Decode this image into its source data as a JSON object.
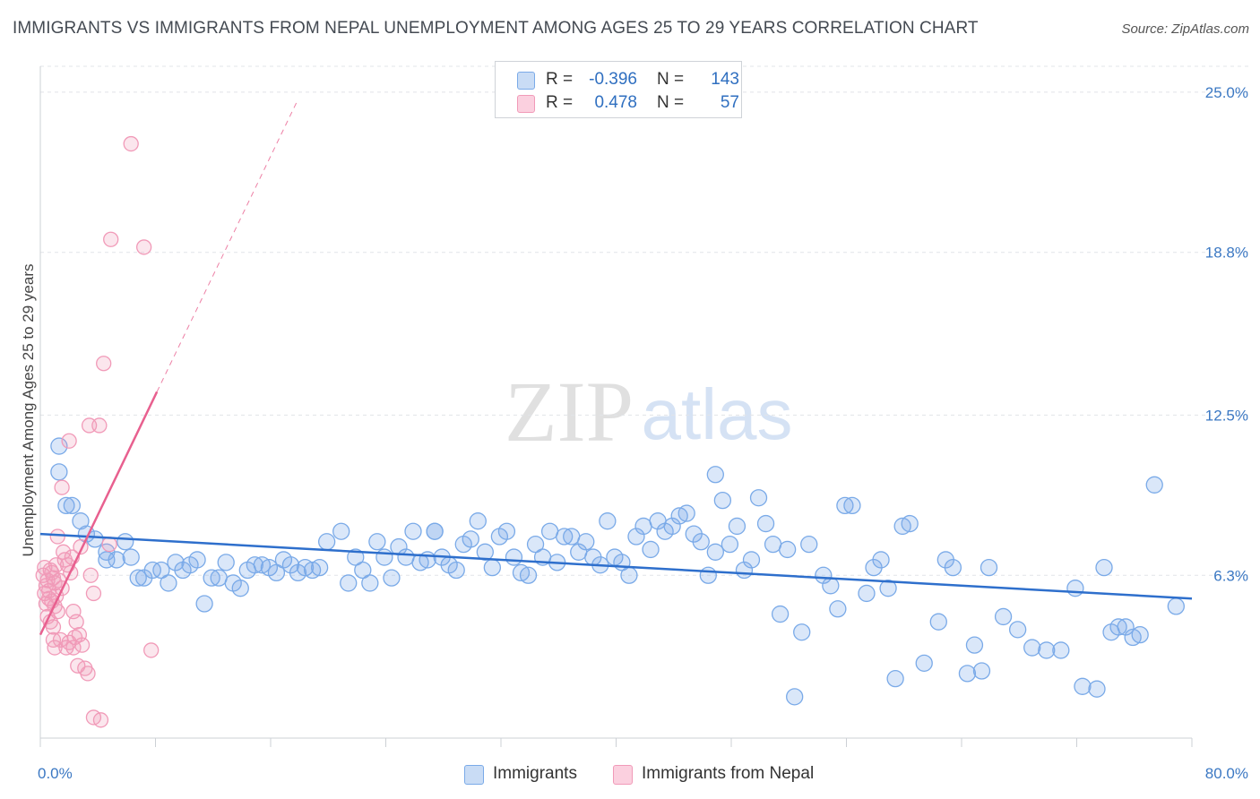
{
  "title": "IMMIGRANTS VS IMMIGRANTS FROM NEPAL UNEMPLOYMENT AMONG AGES 25 TO 29 YEARS CORRELATION CHART",
  "source": "Source: ZipAtlas.com",
  "watermark": {
    "zip": "ZIP",
    "atlas": "atlas"
  },
  "legend": {
    "r_label": "R =",
    "n_label": "N =",
    "rows": [
      {
        "name": "Immigrants",
        "r": "-0.396",
        "n": "143",
        "color": "#7aaae8"
      },
      {
        "name": "Immigrants from Nepal",
        "r": "0.478",
        "n": "57",
        "color": "#f19ab8"
      }
    ]
  },
  "chart_data": {
    "type": "scatter",
    "title": "IMMIGRANTS VS IMMIGRANTS FROM NEPAL UNEMPLOYMENT AMONG AGES 25 TO 29 YEARS CORRELATION CHART",
    "xlabel": "",
    "ylabel": "Unemployment Among Ages 25 to 29 years",
    "xlim": [
      0,
      80
    ],
    "ylim": [
      0,
      26
    ],
    "x_tick_labels": [
      "0.0%",
      "80.0%"
    ],
    "y_ticks": [
      6.3,
      12.5,
      18.8,
      25.0
    ],
    "y_tick_labels": [
      "6.3%",
      "12.5%",
      "18.8%",
      "25.0%"
    ],
    "grid": true,
    "legend_position": "top-center",
    "series": [
      {
        "name": "Immigrants",
        "color": "#7aaae8",
        "line_color": "#2e6fcc",
        "r": -0.396,
        "n": 143,
        "trend": {
          "x": [
            0,
            80
          ],
          "y": [
            7.9,
            5.4
          ]
        },
        "points": [
          [
            1.3,
            11.3
          ],
          [
            1.3,
            10.3
          ],
          [
            1.8,
            9.0
          ],
          [
            2.2,
            9.0
          ],
          [
            2.8,
            8.4
          ],
          [
            3.2,
            7.9
          ],
          [
            3.8,
            7.7
          ],
          [
            4.6,
            7.2
          ],
          [
            4.6,
            6.9
          ],
          [
            5.3,
            6.9
          ],
          [
            5.9,
            7.6
          ],
          [
            6.3,
            7.0
          ],
          [
            6.8,
            6.2
          ],
          [
            7.2,
            6.2
          ],
          [
            7.8,
            6.5
          ],
          [
            8.4,
            6.5
          ],
          [
            8.9,
            6.0
          ],
          [
            9.4,
            6.8
          ],
          [
            9.9,
            6.5
          ],
          [
            10.4,
            6.7
          ],
          [
            10.9,
            6.9
          ],
          [
            11.4,
            5.2
          ],
          [
            11.9,
            6.2
          ],
          [
            12.4,
            6.2
          ],
          [
            12.9,
            6.8
          ],
          [
            13.4,
            6.0
          ],
          [
            13.9,
            5.8
          ],
          [
            14.4,
            6.5
          ],
          [
            14.9,
            6.7
          ],
          [
            15.4,
            6.7
          ],
          [
            15.9,
            6.6
          ],
          [
            16.4,
            6.4
          ],
          [
            16.9,
            6.9
          ],
          [
            17.4,
            6.7
          ],
          [
            17.9,
            6.4
          ],
          [
            18.4,
            6.6
          ],
          [
            18.9,
            6.5
          ],
          [
            19.4,
            6.6
          ],
          [
            19.9,
            7.6
          ],
          [
            20.9,
            8.0
          ],
          [
            21.4,
            6.0
          ],
          [
            21.9,
            7.0
          ],
          [
            22.4,
            6.5
          ],
          [
            22.9,
            6.0
          ],
          [
            23.4,
            7.6
          ],
          [
            23.9,
            7.0
          ],
          [
            24.4,
            6.2
          ],
          [
            24.9,
            7.4
          ],
          [
            25.4,
            7.0
          ],
          [
            25.9,
            8.0
          ],
          [
            26.4,
            6.8
          ],
          [
            26.9,
            6.9
          ],
          [
            27.4,
            8.0
          ],
          [
            27.9,
            7.0
          ],
          [
            28.4,
            6.7
          ],
          [
            28.9,
            6.5
          ],
          [
            29.4,
            7.5
          ],
          [
            29.9,
            7.7
          ],
          [
            30.4,
            8.4
          ],
          [
            30.9,
            7.2
          ],
          [
            31.4,
            6.6
          ],
          [
            31.9,
            7.8
          ],
          [
            32.4,
            8.0
          ],
          [
            32.9,
            7.0
          ],
          [
            33.4,
            6.4
          ],
          [
            33.9,
            6.3
          ],
          [
            34.4,
            7.5
          ],
          [
            34.9,
            7.0
          ],
          [
            35.4,
            8.0
          ],
          [
            35.9,
            6.8
          ],
          [
            36.4,
            7.8
          ],
          [
            36.9,
            7.8
          ],
          [
            37.4,
            7.2
          ],
          [
            37.9,
            7.6
          ],
          [
            38.4,
            7.0
          ],
          [
            38.9,
            6.7
          ],
          [
            39.4,
            8.4
          ],
          [
            39.9,
            7.0
          ],
          [
            40.4,
            6.8
          ],
          [
            40.9,
            6.3
          ],
          [
            41.4,
            7.8
          ],
          [
            41.9,
            8.2
          ],
          [
            42.4,
            7.3
          ],
          [
            42.9,
            8.4
          ],
          [
            43.4,
            8.0
          ],
          [
            43.9,
            8.2
          ],
          [
            44.4,
            8.6
          ],
          [
            44.9,
            8.7
          ],
          [
            45.4,
            7.9
          ],
          [
            45.9,
            7.6
          ],
          [
            46.4,
            6.3
          ],
          [
            46.9,
            7.2
          ],
          [
            47.4,
            9.2
          ],
          [
            47.9,
            7.5
          ],
          [
            48.4,
            8.2
          ],
          [
            48.9,
            6.5
          ],
          [
            49.4,
            6.9
          ],
          [
            49.9,
            9.3
          ],
          [
            50.4,
            8.3
          ],
          [
            50.9,
            7.5
          ],
          [
            51.4,
            4.8
          ],
          [
            51.9,
            7.3
          ],
          [
            52.4,
            1.6
          ],
          [
            52.9,
            4.1
          ],
          [
            53.4,
            7.5
          ],
          [
            54.4,
            6.3
          ],
          [
            54.9,
            5.9
          ],
          [
            55.4,
            5.0
          ],
          [
            55.9,
            9.0
          ],
          [
            56.4,
            9.0
          ],
          [
            57.4,
            5.6
          ],
          [
            57.9,
            6.6
          ],
          [
            58.4,
            6.9
          ],
          [
            58.9,
            5.8
          ],
          [
            59.4,
            2.3
          ],
          [
            59.9,
            8.2
          ],
          [
            60.4,
            8.3
          ],
          [
            61.4,
            2.9
          ],
          [
            62.4,
            4.5
          ],
          [
            62.9,
            6.9
          ],
          [
            63.4,
            6.6
          ],
          [
            64.4,
            2.5
          ],
          [
            64.9,
            3.6
          ],
          [
            65.4,
            2.6
          ],
          [
            65.9,
            6.6
          ],
          [
            66.9,
            4.7
          ],
          [
            67.9,
            4.2
          ],
          [
            68.9,
            3.5
          ],
          [
            69.9,
            3.4
          ],
          [
            70.9,
            3.4
          ],
          [
            71.9,
            5.8
          ],
          [
            72.4,
            2.0
          ],
          [
            73.4,
            1.9
          ],
          [
            73.9,
            6.6
          ],
          [
            74.4,
            4.1
          ],
          [
            74.9,
            4.3
          ],
          [
            75.4,
            4.3
          ],
          [
            75.9,
            3.9
          ],
          [
            76.4,
            4.0
          ],
          [
            77.4,
            9.8
          ],
          [
            78.9,
            5.1
          ],
          [
            46.9,
            10.2
          ],
          [
            27.4,
            8.0
          ]
        ]
      },
      {
        "name": "Immigrants from Nepal",
        "color": "#f19ab8",
        "line_color": "#e8608f",
        "r": 0.478,
        "n": 57,
        "trend": {
          "x": [
            0,
            8.1
          ],
          "y": [
            4.0,
            13.4
          ]
        },
        "trend_dashed": {
          "x": [
            8.1,
            17.8
          ],
          "y": [
            13.4,
            24.6
          ]
        },
        "points": [
          [
            0.2,
            6.3
          ],
          [
            0.3,
            5.6
          ],
          [
            0.4,
            5.2
          ],
          [
            0.5,
            6.1
          ],
          [
            0.6,
            5.7
          ],
          [
            0.7,
            6.5
          ],
          [
            0.8,
            5.3
          ],
          [
            0.9,
            6.2
          ],
          [
            1.0,
            6.0
          ],
          [
            1.1,
            5.5
          ],
          [
            0.3,
            6.6
          ],
          [
            0.4,
            5.9
          ],
          [
            0.6,
            5.4
          ],
          [
            0.8,
            6.4
          ],
          [
            1.0,
            5.1
          ],
          [
            1.2,
            4.9
          ],
          [
            0.5,
            4.7
          ],
          [
            0.7,
            4.5
          ],
          [
            0.9,
            4.3
          ],
          [
            1.1,
            6.7
          ],
          [
            1.3,
            6.1
          ],
          [
            1.5,
            5.8
          ],
          [
            1.7,
            6.9
          ],
          [
            1.9,
            6.7
          ],
          [
            2.1,
            6.4
          ],
          [
            2.3,
            4.9
          ],
          [
            2.5,
            4.5
          ],
          [
            2.7,
            4.0
          ],
          [
            2.9,
            3.6
          ],
          [
            3.1,
            2.7
          ],
          [
            3.3,
            2.5
          ],
          [
            3.5,
            6.3
          ],
          [
            3.7,
            5.6
          ],
          [
            1.0,
            3.5
          ],
          [
            1.4,
            3.8
          ],
          [
            1.8,
            3.5
          ],
          [
            2.0,
            3.7
          ],
          [
            2.4,
            3.9
          ],
          [
            2.6,
            2.8
          ],
          [
            1.2,
            7.8
          ],
          [
            1.6,
            7.2
          ],
          [
            2.2,
            7.0
          ],
          [
            2.8,
            7.4
          ],
          [
            3.4,
            12.1
          ],
          [
            4.1,
            12.1
          ],
          [
            1.5,
            9.7
          ],
          [
            2.0,
            11.5
          ],
          [
            4.4,
            14.5
          ],
          [
            4.9,
            19.3
          ],
          [
            6.3,
            23.0
          ],
          [
            7.2,
            19.0
          ],
          [
            7.7,
            3.4
          ],
          [
            3.7,
            0.8
          ],
          [
            4.2,
            0.7
          ],
          [
            2.3,
            3.5
          ],
          [
            0.9,
            3.8
          ],
          [
            4.8,
            7.5
          ]
        ]
      }
    ]
  }
}
